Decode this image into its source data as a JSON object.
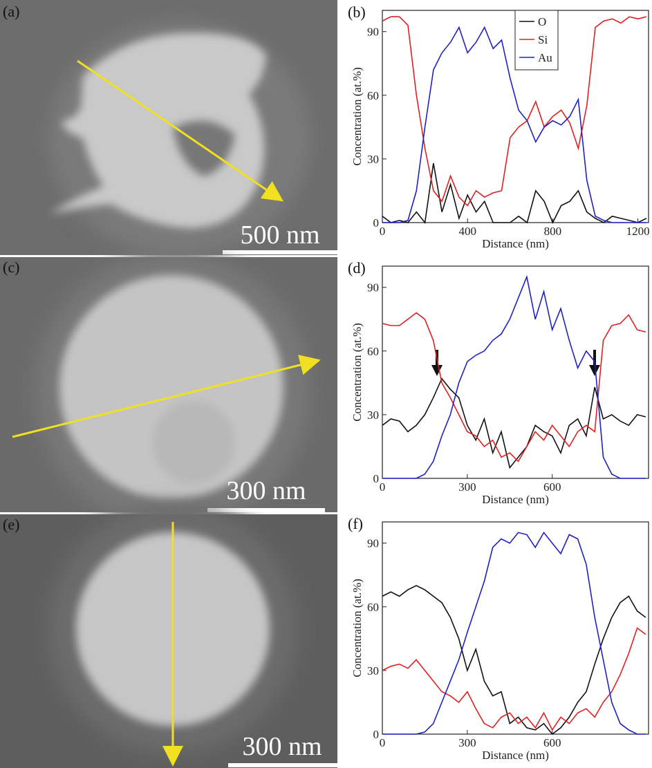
{
  "images": [
    {
      "label": "(a)",
      "scale_bar": "500 nm"
    },
    {
      "label": "(c)",
      "scale_bar": "300 nm"
    },
    {
      "label": "(e)",
      "scale_bar": "300 nm"
    }
  ],
  "chart_data": [
    {
      "type": "line",
      "panel": "(b)",
      "x_label": "Distance (nm)",
      "y_label": "Concentration (at.%)",
      "xlim": [
        0,
        1250
      ],
      "xticks": [
        0,
        400,
        800,
        1200
      ],
      "ylim": [
        0,
        100
      ],
      "yticks": [
        0,
        30,
        60,
        90
      ],
      "legend": "top",
      "x": [
        0,
        40,
        80,
        120,
        160,
        200,
        240,
        280,
        320,
        360,
        400,
        440,
        480,
        520,
        560,
        600,
        640,
        680,
        720,
        760,
        800,
        840,
        880,
        920,
        960,
        1000,
        1040,
        1080,
        1120,
        1160,
        1200,
        1240
      ],
      "series": [
        {
          "name": "O",
          "color": "#111111",
          "values": [
            3,
            0,
            1,
            0,
            5,
            0,
            28,
            5,
            18,
            2,
            13,
            5,
            10,
            0,
            0,
            0,
            3,
            0,
            15,
            10,
            0,
            8,
            10,
            15,
            5,
            2,
            0,
            3,
            2,
            1,
            0,
            2
          ]
        },
        {
          "name": "Si",
          "color": "#e02020",
          "values": [
            95,
            97,
            97,
            93,
            60,
            35,
            15,
            10,
            22,
            12,
            8,
            15,
            12,
            14,
            15,
            40,
            45,
            48,
            57,
            45,
            50,
            53,
            47,
            35,
            55,
            92,
            95,
            96,
            94,
            97,
            96,
            97
          ]
        },
        {
          "name": "Au",
          "color": "#2020c0",
          "values": [
            0,
            0,
            0,
            1,
            15,
            45,
            72,
            80,
            85,
            92,
            80,
            85,
            92,
            82,
            86,
            68,
            53,
            48,
            38,
            45,
            48,
            46,
            50,
            58,
            20,
            3,
            1,
            0,
            0,
            0,
            0,
            0
          ]
        }
      ]
    },
    {
      "type": "line",
      "panel": "(d)",
      "x_label": "Distance (nm)",
      "y_label": "Concentration (at.%)",
      "xlim": [
        0,
        940
      ],
      "xticks": [
        0,
        300,
        600
      ],
      "ylim": [
        0,
        100
      ],
      "yticks": [
        0,
        30,
        60,
        90
      ],
      "x": [
        0,
        30,
        60,
        90,
        120,
        150,
        180,
        210,
        240,
        270,
        300,
        330,
        360,
        390,
        420,
        450,
        480,
        510,
        540,
        570,
        600,
        630,
        660,
        690,
        720,
        750,
        780,
        810,
        840,
        870,
        900,
        930
      ],
      "series": [
        {
          "color": "#111111",
          "values": [
            25,
            28,
            27,
            22,
            25,
            30,
            38,
            47,
            42,
            38,
            25,
            18,
            28,
            12,
            22,
            5,
            10,
            15,
            25,
            22,
            20,
            12,
            25,
            28,
            20,
            43,
            28,
            30,
            27,
            25,
            30,
            29
          ]
        },
        {
          "color": "#e02020",
          "values": [
            73,
            72,
            72,
            75,
            78,
            75,
            65,
            45,
            38,
            30,
            22,
            20,
            15,
            18,
            10,
            12,
            8,
            15,
            22,
            18,
            25,
            20,
            15,
            22,
            25,
            22,
            65,
            72,
            73,
            77,
            70,
            69
          ]
        },
        {
          "color": "#2020c0",
          "values": [
            0,
            0,
            0,
            0,
            0,
            2,
            8,
            20,
            30,
            45,
            55,
            58,
            60,
            65,
            68,
            75,
            85,
            95,
            75,
            88,
            70,
            80,
            65,
            52,
            60,
            55,
            10,
            2,
            0,
            0,
            0,
            0
          ]
        }
      ]
    },
    {
      "type": "line",
      "panel": "(f)",
      "x_label": "Distance (nm)",
      "y_label": "Concentration (at.%)",
      "xlim": [
        0,
        940
      ],
      "xticks": [
        0,
        300,
        600
      ],
      "ylim": [
        0,
        100
      ],
      "yticks": [
        0,
        30,
        60,
        90
      ],
      "x": [
        0,
        30,
        60,
        90,
        120,
        150,
        180,
        210,
        240,
        270,
        300,
        330,
        360,
        390,
        420,
        450,
        480,
        510,
        540,
        570,
        600,
        630,
        660,
        690,
        720,
        750,
        780,
        810,
        840,
        870,
        900,
        930
      ],
      "series": [
        {
          "color": "#111111",
          "values": [
            65,
            67,
            65,
            68,
            70,
            68,
            65,
            62,
            55,
            45,
            30,
            40,
            25,
            18,
            20,
            5,
            8,
            3,
            2,
            5,
            0,
            3,
            8,
            15,
            20,
            33,
            45,
            55,
            62,
            65,
            58,
            55
          ]
        },
        {
          "color": "#e02020",
          "values": [
            30,
            32,
            33,
            31,
            35,
            30,
            25,
            20,
            18,
            15,
            20,
            12,
            5,
            3,
            8,
            10,
            5,
            8,
            3,
            10,
            2,
            8,
            5,
            10,
            12,
            8,
            15,
            20,
            28,
            38,
            50,
            47
          ]
        },
        {
          "color": "#2020c0",
          "values": [
            0,
            0,
            0,
            0,
            0,
            1,
            5,
            15,
            25,
            35,
            48,
            60,
            72,
            88,
            92,
            90,
            95,
            94,
            88,
            95,
            90,
            85,
            94,
            92,
            80,
            55,
            35,
            15,
            5,
            2,
            0,
            0
          ]
        }
      ]
    }
  ]
}
